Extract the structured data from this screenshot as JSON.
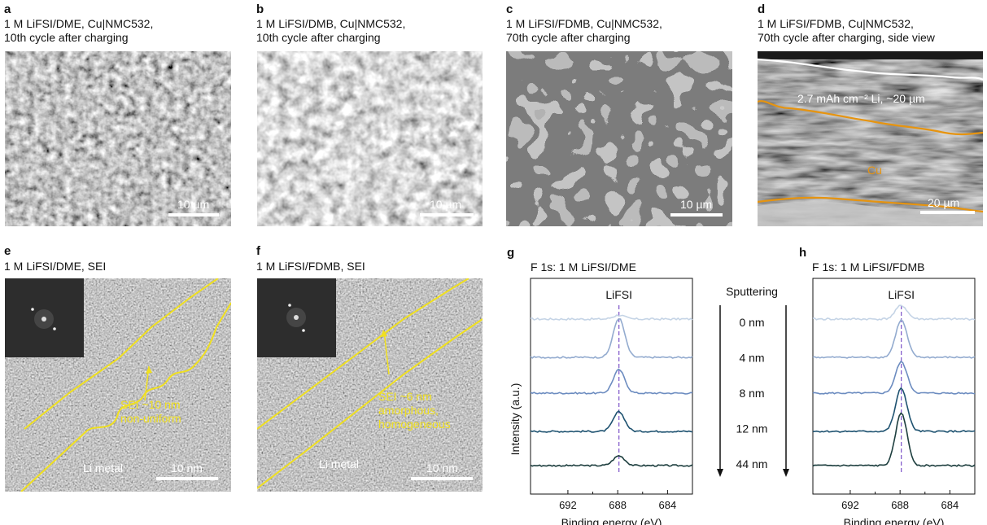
{
  "panels": {
    "a": {
      "letter": "a",
      "caption1": "1 M LiFSI/DME, Cu|NMC532,",
      "caption2": "10th cycle after charging",
      "scalebar": "10 µm"
    },
    "b": {
      "letter": "b",
      "caption1": "1 M LiFSI/DMB, Cu|NMC532,",
      "caption2": "10th cycle after charging",
      "scalebar": "10 µm"
    },
    "c": {
      "letter": "c",
      "caption1": "1 M LiFSI/FDMB, Cu|NMC532,",
      "caption2": "70th cycle after charging",
      "scalebar": "10 µm"
    },
    "d": {
      "letter": "d",
      "caption1": "1 M LiFSI/FDMB, Cu|NMC532,",
      "caption2": "70th cycle after charging, side view",
      "scalebar": "20 µm",
      "li_label": "2.7 mAh cm⁻² Li, ~20 µm",
      "cu_label": "Cu"
    },
    "e": {
      "letter": "e",
      "caption": "1 M LiFSI/DME, SEI",
      "sei1": "SEI ~10 nm",
      "sei2": "non-uniform",
      "li_metal": "Li metal",
      "scalebar": "10 nm"
    },
    "f": {
      "letter": "f",
      "caption": "1 M LiFSI/FDMB, SEI",
      "sei1": "SEI ~6 nm",
      "sei2": "amorphous,",
      "sei3": "homogeneous",
      "li_metal": "Li metal",
      "scalebar": "10 nm"
    },
    "g": {
      "letter": "g",
      "title": "F 1s: 1 M LiFSI/DME",
      "peak_label": "LiFSI",
      "ylabel": "Intensity (a.u.)",
      "xlabel": "Binding energy (eV)"
    },
    "h": {
      "letter": "h",
      "title": "F 1s: 1 M LiFSI/FDMB",
      "peak_label": "LiFSI",
      "xlabel": "Binding energy (eV)"
    }
  },
  "sputtering": {
    "title": "Sputtering",
    "depths": [
      "0 nm",
      "4 nm",
      "8 nm",
      "12 nm",
      "44 nm"
    ]
  },
  "chart_data": [
    {
      "type": "line",
      "title": "F 1s: 1 M LiFSI/DME",
      "xlabel": "Binding energy (eV)",
      "ylabel": "Intensity (a.u.)",
      "xlim": [
        695,
        682
      ],
      "xticks": [
        "692",
        "688",
        "684"
      ],
      "peak_position": 687.9,
      "annotation": "LiFSI",
      "series": [
        {
          "name": "0 nm",
          "peak_height": 0.1,
          "color": "#c5d4e6"
        },
        {
          "name": "4 nm",
          "peak_height": 1.0,
          "color": "#93abcf"
        },
        {
          "name": "8 nm",
          "peak_height": 0.6,
          "color": "#6c8cc0"
        },
        {
          "name": "12 nm",
          "peak_height": 0.5,
          "color": "#1e5270"
        },
        {
          "name": "44 nm",
          "peak_height": 0.25,
          "color": "#1d3e3e"
        }
      ]
    },
    {
      "type": "line",
      "title": "F 1s: 1 M LiFSI/FDMB",
      "xlabel": "Binding energy (eV)",
      "ylabel": "Intensity (a.u.)",
      "xlim": [
        695,
        682
      ],
      "xticks": [
        "692",
        "688",
        "684"
      ],
      "peak_position": 687.9,
      "annotation": "LiFSI",
      "series": [
        {
          "name": "0 nm",
          "peak_height": 0.35,
          "color": "#c5d4e6"
        },
        {
          "name": "4 nm",
          "peak_height": 0.95,
          "color": "#93abcf"
        },
        {
          "name": "8 nm",
          "peak_height": 0.8,
          "color": "#6c8cc0"
        },
        {
          "name": "12 nm",
          "peak_height": 1.1,
          "color": "#1e5270"
        },
        {
          "name": "44 nm",
          "peak_height": 1.35,
          "color": "#1d3e3e"
        }
      ]
    }
  ]
}
